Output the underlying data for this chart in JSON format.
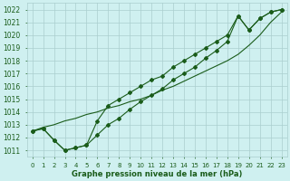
{
  "hours": [
    0,
    1,
    2,
    3,
    4,
    5,
    6,
    7,
    8,
    9,
    10,
    11,
    12,
    13,
    14,
    15,
    16,
    17,
    18,
    19,
    20,
    21,
    22,
    23
  ],
  "s_diagonal": [
    1012.5,
    1012.8,
    1013.0,
    1013.3,
    1013.5,
    1013.8,
    1014.0,
    1014.3,
    1014.5,
    1014.8,
    1015.0,
    1015.3,
    1015.7,
    1016.0,
    1016.4,
    1016.8,
    1017.2,
    1017.6,
    1018.0,
    1018.5,
    1019.2,
    1020.0,
    1021.0,
    1021.8
  ],
  "s_upper": [
    1012.5,
    1012.7,
    1011.8,
    1011.0,
    1011.2,
    1011.4,
    1013.3,
    1014.5,
    1015.0,
    1015.5,
    1016.0,
    1016.5,
    1016.8,
    1017.5,
    1018.0,
    1018.5,
    1019.0,
    1019.5,
    1020.0,
    1021.5,
    1020.4,
    1021.3,
    1021.8,
    1022.0
  ],
  "s_lower": [
    1012.5,
    1012.7,
    1011.8,
    1011.0,
    1011.2,
    1011.4,
    1012.2,
    1013.0,
    1013.5,
    1014.2,
    1014.8,
    1015.3,
    1015.8,
    1016.5,
    1017.0,
    1017.5,
    1018.2,
    1018.8,
    1019.5,
    1021.5,
    1020.4,
    1021.3,
    1021.8,
    1022.0
  ],
  "ylim": [
    1010.5,
    1022.5
  ],
  "yticks": [
    1011,
    1012,
    1013,
    1014,
    1015,
    1016,
    1017,
    1018,
    1019,
    1020,
    1021,
    1022
  ],
  "line_color": "#1a5c1a",
  "bg_color": "#cff0f0",
  "grid_color": "#aacece",
  "xlabel": "Graphe pression niveau de la mer (hPa)",
  "label_color": "#1a5c1a",
  "marker": "D",
  "marker_size": 2.0,
  "linewidth": 0.8
}
